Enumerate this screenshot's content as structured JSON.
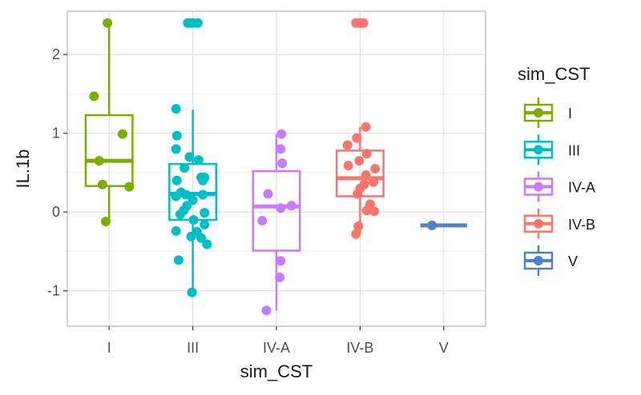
{
  "chart_data": {
    "type": "boxplot",
    "title": "",
    "xlabel": "sim_CST",
    "ylabel": "IL.1b",
    "ylim": [
      -1.45,
      2.55
    ],
    "yticks": [
      -1,
      0,
      1,
      2
    ],
    "ytick_labels": [
      "-1",
      "0",
      "1",
      "2"
    ],
    "categories": [
      "I",
      "III",
      "IV-A",
      "IV-B",
      "V"
    ],
    "grid": true,
    "legend_title": "sim_CST",
    "legend_position": "right",
    "series": [
      {
        "name": "I",
        "color": "#7CAE00",
        "box": {
          "whisker_low": -0.12,
          "q1": 0.33,
          "median": 0.65,
          "q3": 1.23,
          "whisker_high": 2.4
        },
        "points": [
          {
            "dx": -0.02,
            "y": 2.4
          },
          {
            "dx": -0.18,
            "y": 1.47
          },
          {
            "dx": 0.16,
            "y": 0.99
          },
          {
            "dx": -0.12,
            "y": 0.65
          },
          {
            "dx": -0.08,
            "y": 0.35
          },
          {
            "dx": 0.24,
            "y": 0.32
          },
          {
            "dx": -0.04,
            "y": -0.12
          }
        ]
      },
      {
        "name": "III",
        "color": "#00BFC4",
        "box": {
          "whisker_low": -1.03,
          "q1": -0.1,
          "median": 0.23,
          "q3": 0.61,
          "whisker_high": 1.3
        },
        "points": [
          {
            "dx": -0.06,
            "y": 2.4
          },
          {
            "dx": 0.0,
            "y": 2.4
          },
          {
            "dx": 0.06,
            "y": 2.4
          },
          {
            "dx": -0.03,
            "y": 2.4
          },
          {
            "dx": -0.2,
            "y": 1.31
          },
          {
            "dx": -0.19,
            "y": 0.97
          },
          {
            "dx": -0.2,
            "y": 0.8
          },
          {
            "dx": -0.04,
            "y": 0.7
          },
          {
            "dx": 0.07,
            "y": 0.66
          },
          {
            "dx": -0.1,
            "y": 0.56
          },
          {
            "dx": 0.1,
            "y": 0.44
          },
          {
            "dx": 0.14,
            "y": 0.44
          },
          {
            "dx": 0.12,
            "y": 0.4
          },
          {
            "dx": -0.19,
            "y": 0.4
          },
          {
            "dx": -0.14,
            "y": 0.25
          },
          {
            "dx": -0.08,
            "y": 0.22
          },
          {
            "dx": 0.12,
            "y": 0.22
          },
          {
            "dx": -0.2,
            "y": 0.2
          },
          {
            "dx": 0.0,
            "y": 0.15
          },
          {
            "dx": -0.07,
            "y": 0.08
          },
          {
            "dx": -0.11,
            "y": 0.02
          },
          {
            "dx": 0.14,
            "y": -0.01
          },
          {
            "dx": -0.15,
            "y": -0.03
          },
          {
            "dx": 0.01,
            "y": -0.1
          },
          {
            "dx": 0.14,
            "y": -0.16
          },
          {
            "dx": -0.2,
            "y": -0.24
          },
          {
            "dx": 0.05,
            "y": -0.25
          },
          {
            "dx": -0.02,
            "y": -0.31
          },
          {
            "dx": 0.1,
            "y": -0.33
          },
          {
            "dx": 0.17,
            "y": -0.41
          },
          {
            "dx": -0.17,
            "y": -0.61
          },
          {
            "dx": -0.01,
            "y": -1.02
          }
        ]
      },
      {
        "name": "IV-A",
        "color": "#C77CFF",
        "box": {
          "whisker_low": -1.25,
          "q1": -0.49,
          "median": 0.07,
          "q3": 0.52,
          "whisker_high": 0.99
        },
        "points": [
          {
            "dx": 0.06,
            "y": 0.99
          },
          {
            "dx": 0.05,
            "y": 0.8
          },
          {
            "dx": 0.07,
            "y": 0.62
          },
          {
            "dx": -0.1,
            "y": 0.23
          },
          {
            "dx": 0.18,
            "y": 0.08
          },
          {
            "dx": 0.05,
            "y": 0.05
          },
          {
            "dx": -0.17,
            "y": -0.11
          },
          {
            "dx": 0.05,
            "y": -0.62
          },
          {
            "dx": 0.04,
            "y": -0.83
          },
          {
            "dx": -0.12,
            "y": -1.25
          }
        ]
      },
      {
        "name": "IV-B",
        "color": "#F8766D",
        "box": {
          "whisker_low": -0.28,
          "q1": 0.2,
          "median": 0.43,
          "q3": 0.78,
          "whisker_high": 1.08
        },
        "points": [
          {
            "dx": -0.05,
            "y": 2.4
          },
          {
            "dx": 0.0,
            "y": 2.4
          },
          {
            "dx": 0.04,
            "y": 2.4
          },
          {
            "dx": 0.07,
            "y": 1.08
          },
          {
            "dx": -0.04,
            "y": 0.94
          },
          {
            "dx": -0.15,
            "y": 0.85
          },
          {
            "dx": 0.08,
            "y": 0.74
          },
          {
            "dx": -0.01,
            "y": 0.65
          },
          {
            "dx": -0.14,
            "y": 0.59
          },
          {
            "dx": 0.18,
            "y": 0.55
          },
          {
            "dx": 0.07,
            "y": 0.47
          },
          {
            "dx": 0.16,
            "y": 0.38
          },
          {
            "dx": 0.05,
            "y": 0.35
          },
          {
            "dx": 0.0,
            "y": 0.3
          },
          {
            "dx": -0.03,
            "y": 0.23
          },
          {
            "dx": 0.12,
            "y": 0.1
          },
          {
            "dx": 0.08,
            "y": 0.02
          },
          {
            "dx": 0.17,
            "y": 0.01
          },
          {
            "dx": -0.02,
            "y": -0.18
          },
          {
            "dx": -0.05,
            "y": -0.28
          }
        ]
      },
      {
        "name": "V",
        "color": "#5084C4",
        "box": {
          "whisker_low": -0.17,
          "q1": -0.17,
          "median": -0.17,
          "q3": -0.17,
          "whisker_high": -0.17
        },
        "points": [
          {
            "dx": -0.14,
            "y": -0.17
          }
        ]
      }
    ]
  }
}
